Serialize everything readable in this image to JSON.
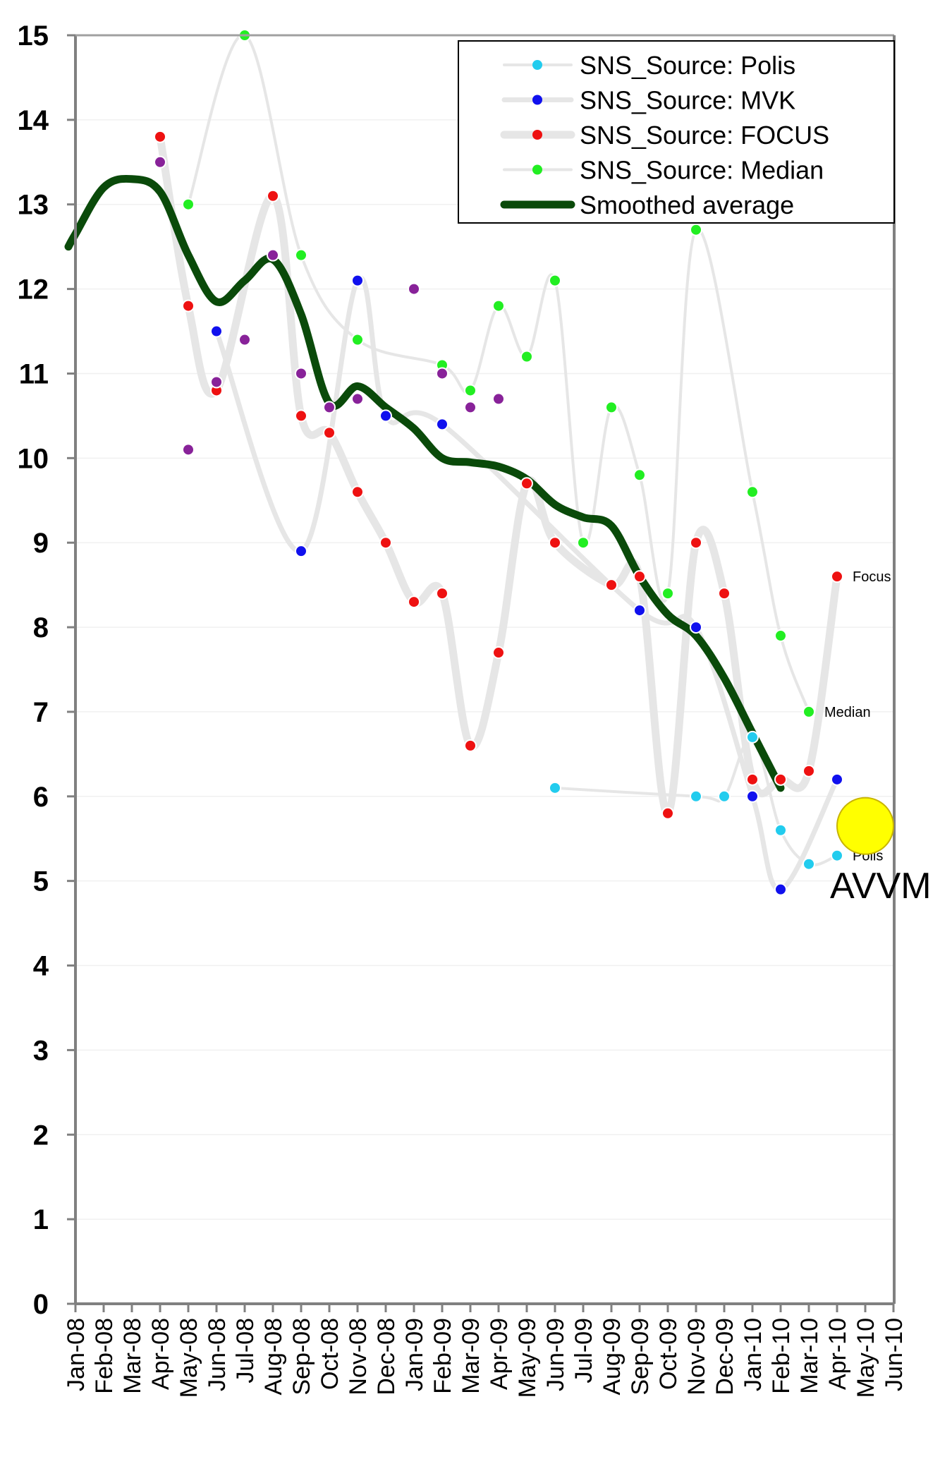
{
  "chart_data": {
    "type": "line",
    "categories": [
      "Jan-08",
      "Feb-08",
      "Mar-08",
      "Apr-08",
      "May-08",
      "Jun-08",
      "Jul-08",
      "Aug-08",
      "Sep-08",
      "Oct-08",
      "Nov-08",
      "Dec-08",
      "Jan-09",
      "Feb-09",
      "Mar-09",
      "Apr-09",
      "May-09",
      "Jun-09",
      "Jul-09",
      "Aug-09",
      "Sep-09",
      "Oct-09",
      "Nov-09",
      "Dec-09",
      "Jan-10",
      "Feb-10",
      "Mar-10",
      "Apr-10",
      "May-10",
      "Jun-10"
    ],
    "ylim": [
      0,
      15
    ],
    "yticks": [
      "0",
      "1",
      "2",
      "3",
      "4",
      "5",
      "6",
      "7",
      "8",
      "9",
      "10",
      "11",
      "12",
      "13",
      "14",
      "15"
    ],
    "grid": true,
    "legend_position": "top-right",
    "series": [
      {
        "name": "SNS_Source: Polis",
        "color": "#22ccee",
        "line_color": "#e6e6e6",
        "line": "thin",
        "points": [
          [
            17,
            6.1
          ],
          [
            22,
            6.0
          ],
          [
            23,
            6.0
          ],
          [
            24,
            6.7
          ],
          [
            25,
            5.6
          ],
          [
            26,
            5.2
          ],
          [
            27,
            5.3
          ]
        ]
      },
      {
        "name": "SNS_Source: MVK",
        "color": "#1010ee",
        "line_color": "#e6e6e6",
        "line": "medium",
        "points": [
          [
            5,
            11.5
          ],
          [
            8,
            8.9
          ],
          [
            10,
            12.1
          ],
          [
            11,
            10.5
          ],
          [
            13,
            10.4
          ],
          [
            20,
            8.2
          ],
          [
            22,
            8.0
          ],
          [
            24,
            6.0
          ],
          [
            25,
            4.9
          ],
          [
            27,
            6.2
          ]
        ]
      },
      {
        "name": "SNS_Source: FOCUS",
        "color": "#ee1111",
        "line_color": "#e6e6e6",
        "line": "thick",
        "points": [
          [
            3,
            13.8
          ],
          [
            4,
            11.8
          ],
          [
            5,
            10.8
          ],
          [
            7,
            13.1
          ],
          [
            8,
            10.5
          ],
          [
            9,
            10.3
          ],
          [
            10,
            9.6
          ],
          [
            11,
            9.0
          ],
          [
            12,
            8.3
          ],
          [
            13,
            8.4
          ],
          [
            14,
            6.6
          ],
          [
            15,
            7.7
          ],
          [
            16,
            9.7
          ],
          [
            17,
            9.0
          ],
          [
            19,
            8.5
          ],
          [
            20,
            8.6
          ],
          [
            21,
            5.8
          ],
          [
            22,
            9.0
          ],
          [
            23,
            8.4
          ],
          [
            24,
            6.2
          ],
          [
            25,
            6.2
          ],
          [
            26,
            6.3
          ],
          [
            27,
            8.6
          ]
        ]
      },
      {
        "name": "SNS_Source: Median",
        "color": "#22ee22",
        "line_color": "#e6e6e6",
        "line": "thin",
        "points": [
          [
            4,
            13.0
          ],
          [
            6,
            15.0
          ],
          [
            8,
            12.4
          ],
          [
            10,
            11.4
          ],
          [
            13,
            11.1
          ],
          [
            14,
            10.8
          ],
          [
            15,
            11.8
          ],
          [
            16,
            11.2
          ],
          [
            17,
            12.1
          ],
          [
            18,
            9.0
          ],
          [
            19,
            10.6
          ],
          [
            20,
            9.8
          ],
          [
            21,
            8.4
          ],
          [
            22,
            12.7
          ],
          [
            24,
            9.6
          ],
          [
            25,
            7.9
          ],
          [
            26,
            7.0
          ]
        ]
      },
      {
        "name": "",
        "color": "#882299",
        "line": "none",
        "points": [
          [
            3,
            13.5
          ],
          [
            4,
            10.1
          ],
          [
            5,
            10.9
          ],
          [
            6,
            11.4
          ],
          [
            7,
            12.4
          ],
          [
            8,
            11.0
          ],
          [
            9,
            10.6
          ],
          [
            10,
            10.7
          ],
          [
            12,
            12.0
          ],
          [
            13,
            11.0
          ],
          [
            14,
            10.6
          ],
          [
            15,
            10.7
          ]
        ]
      },
      {
        "name": "Smoothed average",
        "color": "#0a4a0a",
        "line": "bold",
        "points": [
          [
            -0.25,
            12.5
          ],
          [
            0,
            12.65
          ],
          [
            1,
            13.2
          ],
          [
            2,
            13.3
          ],
          [
            3,
            13.15
          ],
          [
            4,
            12.4
          ],
          [
            5,
            11.85
          ],
          [
            6,
            12.1
          ],
          [
            7,
            12.35
          ],
          [
            8,
            11.7
          ],
          [
            9,
            10.65
          ],
          [
            10,
            10.85
          ],
          [
            11,
            10.6
          ],
          [
            12,
            10.35
          ],
          [
            13,
            10.0
          ],
          [
            14,
            9.95
          ],
          [
            15,
            9.9
          ],
          [
            16,
            9.75
          ],
          [
            17,
            9.45
          ],
          [
            18,
            9.3
          ],
          [
            19,
            9.2
          ],
          [
            20,
            8.6
          ],
          [
            21,
            8.15
          ],
          [
            22,
            7.9
          ],
          [
            23,
            7.4
          ],
          [
            24,
            6.75
          ],
          [
            25,
            6.1
          ]
        ]
      }
    ],
    "annotations": [
      {
        "text": "Focus",
        "x": 27,
        "y": 8.6
      },
      {
        "text": "Median",
        "x": 26,
        "y": 7.0
      },
      {
        "text": "Polis",
        "x": 27,
        "y": 5.3
      }
    ],
    "marker": {
      "label": "AVVM",
      "x": 28,
      "y": 5.65,
      "color": "#ffff00"
    }
  }
}
